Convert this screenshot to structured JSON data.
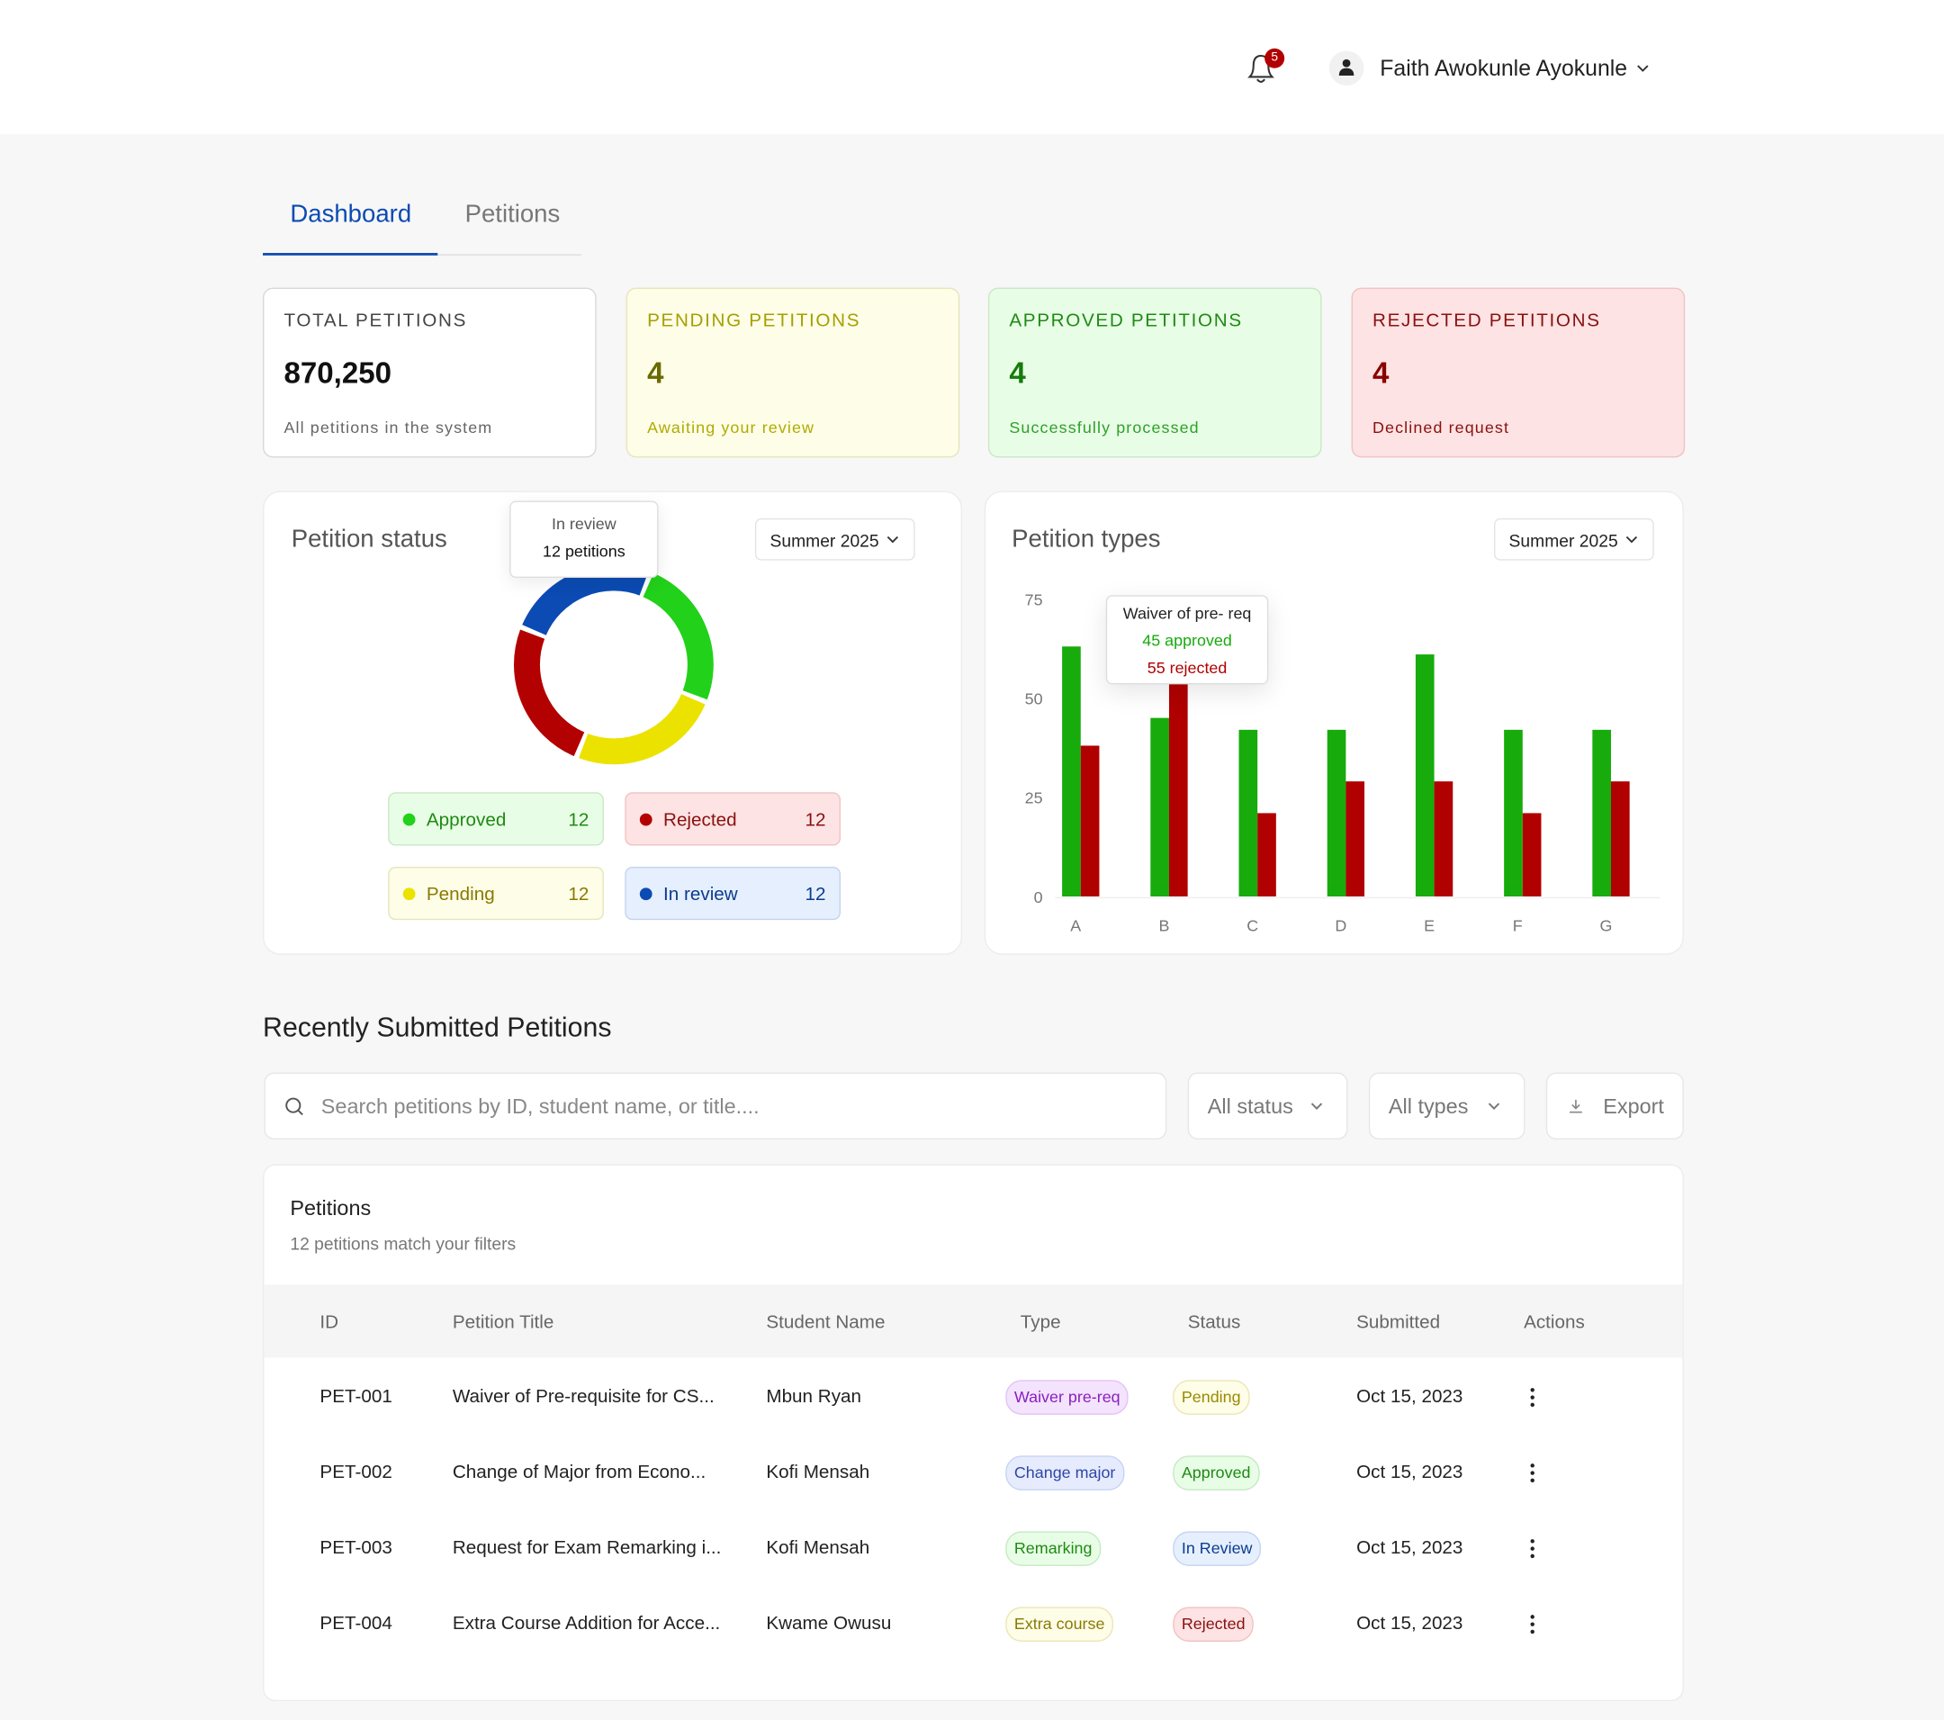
{
  "header": {
    "notification_count": 5,
    "user_name": "Faith Awokunle Ayokunle"
  },
  "tabs": [
    "Dashboard",
    "Petitions"
  ],
  "stat_cards": [
    {
      "label": "TOTAL PETITIONS",
      "value": "870,250",
      "caption": "All petitions in the system"
    },
    {
      "label": "PENDING PETITIONS",
      "value": 4,
      "caption": "Awaiting your review"
    },
    {
      "label": "APPROVED PETITIONS",
      "value": 4,
      "caption": "Successfully processed"
    },
    {
      "label": "REJECTED PETITIONS",
      "value": 4,
      "caption": "Declined request"
    }
  ],
  "chart_data": [
    {
      "type": "donut",
      "title": "Petition status",
      "filter": "Summer 2025",
      "categories": [
        "Approved",
        "Pending",
        "Rejected",
        "In review"
      ],
      "values": [
        12,
        12,
        12,
        12
      ],
      "colors": [
        "#22d11a",
        "#ece200",
        "#b30000",
        "#0b4bb3"
      ],
      "tooltip": {
        "title": "In review",
        "text": "12 petitions"
      }
    },
    {
      "type": "bar",
      "title": "Petition types",
      "filter": "Summer 2025",
      "categories": [
        "A",
        "B",
        "C",
        "D",
        "E",
        "F",
        "G"
      ],
      "series": [
        {
          "color": "#17ab0c",
          "values": [
            63,
            45,
            42,
            42,
            61,
            42,
            42
          ]
        },
        {
          "color": "#b00000",
          "values": [
            38,
            55,
            21,
            29,
            29,
            21,
            29
          ]
        }
      ],
      "ylim": [
        0,
        75
      ],
      "yticks": [
        0,
        25,
        50,
        75
      ],
      "tooltip": {
        "title": "Waiver of pre- req",
        "lines": [
          "45 approved",
          "55 rejected"
        ]
      }
    }
  ],
  "recent": {
    "title": "Recently Submitted Petitions",
    "search_placeholder": "Search petitions by ID, student name, or title....",
    "filters": [
      "All status",
      "All types"
    ],
    "export": "Export"
  },
  "table": {
    "title": "Petitions",
    "subtitle": "12 petitions match your filters",
    "columns": [
      "ID",
      "Petition Title",
      "Student Name",
      "Type",
      "Status",
      "Submitted",
      "Actions"
    ],
    "rows": [
      [
        "PET-001",
        "Waiver of Pre-requisite for CS...",
        "Mbun Ryan",
        "Waiver pre-req",
        "Pending",
        "Oct 15, 2023"
      ],
      [
        "PET-002",
        "Change of Major from Econo...",
        "Kofi Mensah",
        "Change major",
        "Approved",
        "Oct 15, 2023"
      ],
      [
        "PET-003",
        "Request for Exam Remarking i...",
        "Kofi Mensah",
        "Remarking",
        "In Review",
        "Oct 15, 2023"
      ],
      [
        "PET-004",
        "Extra Course Addition for Acce...",
        "Kwame Owusu",
        "Extra course",
        "Rejected",
        "Oct 15, 2023"
      ]
    ]
  }
}
